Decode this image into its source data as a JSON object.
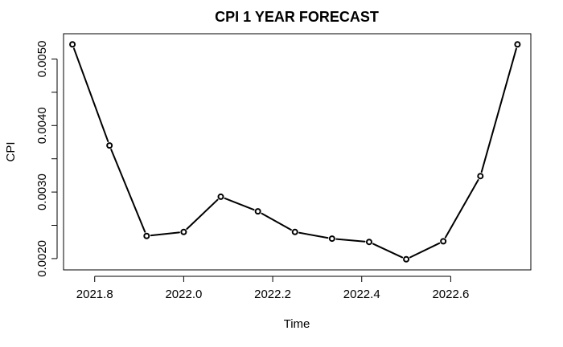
{
  "chart_data": {
    "type": "line",
    "title": "CPI 1 YEAR FORECAST",
    "xlabel": "Time",
    "ylabel": "CPI",
    "x": [
      2021.75,
      2021.8333,
      2021.9167,
      2022.0,
      2022.0833,
      2022.1667,
      2022.25,
      2022.3333,
      2022.4167,
      2022.5,
      2022.5833,
      2022.6667,
      2022.75
    ],
    "y": [
      0.00522,
      0.0037,
      0.00234,
      0.0024,
      0.00293,
      0.00271,
      0.0024,
      0.0023,
      0.00225,
      0.00199,
      0.00226,
      0.00324,
      0.00522
    ],
    "xlim": [
      2021.73,
      2022.78
    ],
    "ylim": [
      0.00183,
      0.00538
    ],
    "x_ticks": [
      2021.8,
      2022.0,
      2022.2,
      2022.4,
      2022.6
    ],
    "x_tick_labels": [
      "2021.8",
      "2022.0",
      "2022.2",
      "2022.4",
      "2022.6"
    ],
    "y_ticks": [
      0.002,
      0.003,
      0.004,
      0.005
    ],
    "y_tick_labels": [
      "0.0020",
      "0.0030",
      "0.0040",
      "0.0050"
    ],
    "y_minor_ticks": [
      0.0025,
      0.0035,
      0.0045
    ],
    "grid": false,
    "legend": "none",
    "line_color": "#000000",
    "marker": "open-circle"
  }
}
